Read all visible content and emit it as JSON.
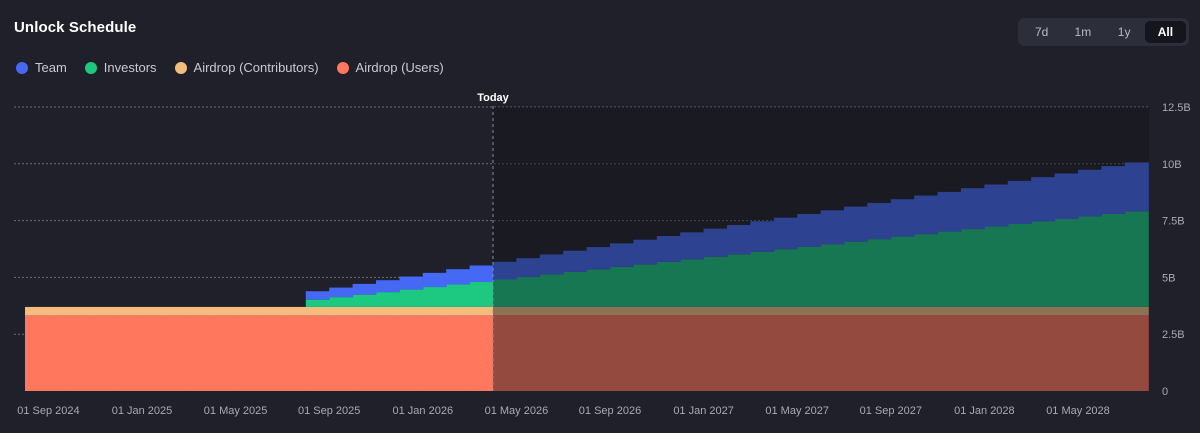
{
  "header": {
    "title": "Unlock Schedule",
    "ranges": [
      "7d",
      "1m",
      "1y",
      "All"
    ],
    "active_range": "All"
  },
  "colors": {
    "team": "#4669f5",
    "investors": "#1dc980",
    "airdrop_contributors": "#f5bc80",
    "airdrop_users": "#ff775c",
    "background": "#1f2029",
    "future_overlay": "#12131b"
  },
  "chart_data": {
    "type": "area",
    "title": "Unlock Schedule",
    "stacked": true,
    "step": true,
    "today_label": "Today",
    "today_month_index": 20,
    "x_start": "Aug 2024",
    "x_end": "Aug 2028",
    "x_unit": "months since Aug 2024",
    "ylim": [
      0,
      12.5
    ],
    "y_unit": "B",
    "y_ticks": [
      "0",
      "2.5B",
      "5B",
      "7.5B",
      "10B",
      "12.5B"
    ],
    "x_ticks": [
      {
        "m": 1,
        "label": "01 Sep 2024"
      },
      {
        "m": 5,
        "label": "01 Jan 2025"
      },
      {
        "m": 9,
        "label": "01 May 2025"
      },
      {
        "m": 13,
        "label": "01 Sep 2025"
      },
      {
        "m": 17,
        "label": "01 Jan 2026"
      },
      {
        "m": 21,
        "label": "01 May 2026"
      },
      {
        "m": 25,
        "label": "01 Sep 2026"
      },
      {
        "m": 29,
        "label": "01 Jan 2027"
      },
      {
        "m": 33,
        "label": "01 May 2027"
      },
      {
        "m": 37,
        "label": "01 Sep 2027"
      },
      {
        "m": 41,
        "label": "01 Jan 2028"
      },
      {
        "m": 45,
        "label": "01 May 2028"
      }
    ],
    "series": [
      {
        "name": "Airdrop (Users)",
        "key": "airdrop_users",
        "start_month": 0,
        "initial": 3.33,
        "monthly": 0,
        "end_month": 48
      },
      {
        "name": "Airdrop (Contributors)",
        "key": "airdrop_contributors",
        "start_month": 0,
        "initial": 0.37,
        "monthly": 0,
        "end_month": 48
      },
      {
        "name": "Investors",
        "key": "investors",
        "start_month": 12,
        "initial": 0.32,
        "monthly": 0.111,
        "end_month": 48
      },
      {
        "name": "Team",
        "key": "team",
        "start_month": 12,
        "initial": 0.37,
        "monthly": 0.051,
        "end_month": 48
      }
    ]
  }
}
